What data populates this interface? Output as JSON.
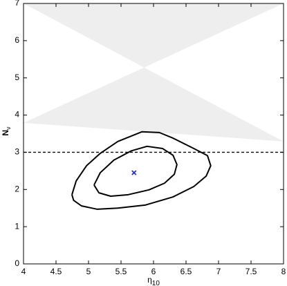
{
  "chart_data": {
    "type": "contour",
    "x_label": {
      "symbol": "η",
      "subscript": "10"
    },
    "y_label": {
      "symbol": "N",
      "subscript": "ν"
    },
    "xlim": [
      4,
      8
    ],
    "ylim": [
      0,
      7
    ],
    "xticks": [
      4,
      4.5,
      5,
      5.5,
      6,
      6.5,
      7,
      7.5,
      8
    ],
    "yticks": [
      0,
      1,
      2,
      3,
      4,
      5,
      6,
      7
    ],
    "region": {
      "x": [
        4,
        8
      ],
      "y": [
        3.79,
        3.29
      ],
      "color": "#eeeeee"
    },
    "hline": {
      "y": 3,
      "color": "#000000",
      "dashed": true
    },
    "marker": {
      "x": 5.7,
      "y": 2.45,
      "color": "#2233bb"
    },
    "series": [
      {
        "color": "#000000",
        "x": [
          5.085,
          5.18,
          5.39,
          5.66,
          5.9,
          6.14,
          6.3,
          6.36,
          6.32,
          6.17,
          5.93,
          5.61,
          5.34,
          5.16,
          5.085
        ],
        "y": [
          2.12,
          2.45,
          2.79,
          3.04,
          3.16,
          3.1,
          2.92,
          2.67,
          2.41,
          2.17,
          1.99,
          1.86,
          1.82,
          1.91,
          2.12
        ]
      },
      {
        "color": "#000000",
        "x": [
          4.745,
          4.81,
          4.97,
          5.18,
          5.45,
          5.82,
          6.09,
          6.3,
          6.62,
          6.83,
          6.88,
          6.81,
          6.62,
          6.3,
          5.87,
          5.45,
          5.13,
          4.89,
          4.77,
          4.745
        ],
        "y": [
          1.86,
          2.23,
          2.64,
          2.97,
          3.29,
          3.55,
          3.53,
          3.38,
          3.1,
          2.91,
          2.64,
          2.36,
          2.08,
          1.8,
          1.58,
          1.5,
          1.47,
          1.56,
          1.71,
          1.86
        ]
      }
    ]
  }
}
